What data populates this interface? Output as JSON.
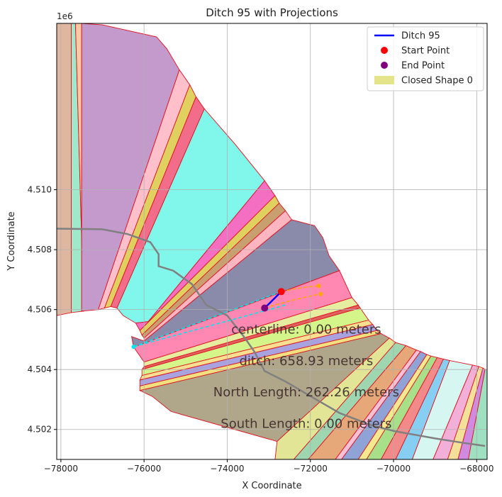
{
  "chart_data": {
    "type": "area",
    "title": "Ditch 95 with Projections",
    "xlabel": "X Coordinate",
    "ylabel": "Y Coordinate",
    "y_offset_label": "1e6",
    "xlim": [
      -78100,
      -67750
    ],
    "ylim": [
      4501000,
      4515550
    ],
    "x_ticks": [
      -78000,
      -76000,
      -74000,
      -72000,
      -70000,
      -68000
    ],
    "x_tick_labels": [
      "−78000",
      "−76000",
      "−74000",
      "−72000",
      "−70000",
      "−68000"
    ],
    "y_ticks": [
      4502000,
      4504000,
      4506000,
      4508000,
      4510000
    ],
    "y_tick_labels": [
      "4.502",
      "4.504",
      "4.506",
      "4.508",
      "4.510"
    ],
    "grid": true,
    "legend_position": "top-right",
    "legend": [
      {
        "label": "Ditch 95",
        "kind": "line",
        "color": "#0000ff"
      },
      {
        "label": "Start Point",
        "kind": "marker",
        "color": "#ff0000"
      },
      {
        "label": "End Point",
        "kind": "marker",
        "color": "#800080"
      },
      {
        "label": "Closed Shape 0",
        "kind": "patch",
        "color": "#e4e48a"
      }
    ],
    "ditch": {
      "name": "Ditch 95",
      "color": "#0000ff",
      "start": [
        -72700,
        4506600
      ],
      "end": [
        -73100,
        4506050
      ]
    },
    "start_point": {
      "x": -72700,
      "y": 4506600,
      "color": "#ff0000"
    },
    "end_point": {
      "x": -73100,
      "y": 4506050,
      "color": "#800080"
    },
    "projections": {
      "cyan": {
        "color": "#00e5ee",
        "points": [
          [
            -76250,
            4504760
          ],
          [
            -72700,
            4506600
          ],
          [
            -72600,
            4506150
          ],
          [
            -76250,
            4504760
          ]
        ]
      },
      "orange": {
        "color": "#ffa500",
        "points": [
          [
            -72700,
            4506600
          ],
          [
            -71800,
            4506790
          ],
          [
            -73100,
            4506050
          ],
          [
            -71750,
            4506520
          ]
        ]
      }
    },
    "gray_path": {
      "color": "#808080",
      "points": [
        [
          -78100,
          4508700
        ],
        [
          -77000,
          4508680
        ],
        [
          -76400,
          4508520
        ],
        [
          -75850,
          4508250
        ],
        [
          -75650,
          4507850
        ],
        [
          -75650,
          4507450
        ],
        [
          -75300,
          4507300
        ],
        [
          -74850,
          4506850
        ],
        [
          -74500,
          4506150
        ],
        [
          -74000,
          4505800
        ],
        [
          -73600,
          4505100
        ],
        [
          -73350,
          4504600
        ],
        [
          -73100,
          4503950
        ],
        [
          -72600,
          4503600
        ],
        [
          -71800,
          4502950
        ],
        [
          -71300,
          4502550
        ],
        [
          -70550,
          4502150
        ],
        [
          -70000,
          4501950
        ],
        [
          -69000,
          4501700
        ],
        [
          -68300,
          4501550
        ],
        [
          -67800,
          4501450
        ]
      ]
    },
    "patches": [
      {
        "color": "#dfb7a1",
        "points": [
          [
            -78100,
            4515550
          ],
          [
            -77750,
            4515550
          ],
          [
            -77750,
            4505900
          ],
          [
            -78100,
            4505800
          ]
        ]
      },
      {
        "color": "#9ee8cc",
        "points": [
          [
            -77750,
            4515550
          ],
          [
            -77650,
            4515550
          ],
          [
            -77450,
            4505950
          ],
          [
            -77750,
            4505900
          ]
        ]
      },
      {
        "color": "#f8c9a2",
        "points": [
          [
            -77650,
            4515550
          ],
          [
            -77500,
            4515550
          ],
          [
            -77500,
            4505950
          ],
          [
            -77450,
            4505950
          ]
        ]
      },
      {
        "color": "#c49acc",
        "points": [
          [
            -77500,
            4515550
          ],
          [
            -77000,
            4515500
          ],
          [
            -75700,
            4515100
          ],
          [
            -75450,
            4514700
          ],
          [
            -75150,
            4514000
          ],
          [
            -77100,
            4506000
          ],
          [
            -77500,
            4505950
          ]
        ]
      },
      {
        "color": "#ffc0cb",
        "points": [
          [
            -75150,
            4514000
          ],
          [
            -74900,
            4513500
          ],
          [
            -76950,
            4506050
          ],
          [
            -77100,
            4506000
          ]
        ]
      },
      {
        "color": "#e0d060",
        "points": [
          [
            -74900,
            4513500
          ],
          [
            -74750,
            4513100
          ],
          [
            -76800,
            4506100
          ],
          [
            -76950,
            4506050
          ]
        ]
      },
      {
        "color": "#f26d8a",
        "points": [
          [
            -74750,
            4513100
          ],
          [
            -74550,
            4512700
          ],
          [
            -76650,
            4506050
          ],
          [
            -76800,
            4506100
          ]
        ]
      },
      {
        "color": "#80f7ea",
        "points": [
          [
            -74550,
            4512700
          ],
          [
            -73800,
            4511500
          ],
          [
            -73100,
            4510300
          ],
          [
            -75900,
            4505600
          ],
          [
            -76200,
            4505550
          ],
          [
            -76500,
            4505800
          ],
          [
            -76650,
            4506050
          ]
        ]
      },
      {
        "color": "#f46fc1",
        "points": [
          [
            -73100,
            4510300
          ],
          [
            -72850,
            4509800
          ],
          [
            -76100,
            4505300
          ],
          [
            -76200,
            4505550
          ],
          [
            -75900,
            4505600
          ]
        ]
      },
      {
        "color": "#e0d060",
        "points": [
          [
            -72850,
            4509800
          ],
          [
            -72750,
            4509550
          ],
          [
            -76050,
            4505150
          ],
          [
            -76100,
            4505300
          ]
        ]
      },
      {
        "color": "#c8a070",
        "points": [
          [
            -72750,
            4509550
          ],
          [
            -72600,
            4509300
          ],
          [
            -76000,
            4505050
          ],
          [
            -76050,
            4505150
          ]
        ]
      },
      {
        "color": "#ffb6c1",
        "points": [
          [
            -72600,
            4509300
          ],
          [
            -72450,
            4509000
          ],
          [
            -76000,
            4504950
          ],
          [
            -76000,
            4505050
          ]
        ]
      },
      {
        "color": "#8a8aab",
        "points": [
          [
            -72450,
            4509000
          ],
          [
            -71900,
            4508800
          ],
          [
            -71700,
            4508400
          ],
          [
            -71550,
            4507800
          ],
          [
            -71300,
            4507300
          ],
          [
            -76250,
            4504750
          ],
          [
            -76300,
            4505100
          ],
          [
            -76000,
            4504950
          ]
        ]
      },
      {
        "color": "#ff88b3",
        "points": [
          [
            -71300,
            4507300
          ],
          [
            -71000,
            4506400
          ],
          [
            -76000,
            4504250
          ],
          [
            -76250,
            4504750
          ]
        ]
      },
      {
        "color": "#e6eda0",
        "points": [
          [
            -71000,
            4506400
          ],
          [
            -70850,
            4506150
          ],
          [
            -76000,
            4504100
          ],
          [
            -76000,
            4504250
          ]
        ]
      },
      {
        "color": "#e06060",
        "points": [
          [
            -70850,
            4506150
          ],
          [
            -70800,
            4506050
          ],
          [
            -76050,
            4504000
          ],
          [
            -76000,
            4504100
          ]
        ]
      },
      {
        "color": "#d4f589",
        "points": [
          [
            -70800,
            4506050
          ],
          [
            -70600,
            4505650
          ],
          [
            -76050,
            4503800
          ],
          [
            -76050,
            4504000
          ]
        ]
      },
      {
        "color": "#f9e090",
        "points": [
          [
            -70600,
            4505650
          ],
          [
            -70500,
            4505500
          ],
          [
            -76100,
            4503650
          ],
          [
            -76050,
            4503800
          ]
        ]
      },
      {
        "color": "#a8a2de",
        "points": [
          [
            -70500,
            4505500
          ],
          [
            -70400,
            4505300
          ],
          [
            -76100,
            4503450
          ],
          [
            -76100,
            4503650
          ]
        ]
      },
      {
        "color": "#f0e080",
        "points": [
          [
            -70400,
            4505300
          ],
          [
            -70300,
            4505200
          ],
          [
            -76100,
            4503300
          ],
          [
            -76100,
            4503450
          ]
        ]
      },
      {
        "color": "#b0a68a",
        "points": [
          [
            -70300,
            4505200
          ],
          [
            -70100,
            4505050
          ],
          [
            -72800,
            4501600
          ],
          [
            -75350,
            4502600
          ],
          [
            -75800,
            4503100
          ],
          [
            -76100,
            4503300
          ]
        ]
      },
      {
        "color": "#e2e595",
        "points": [
          [
            -70100,
            4505050
          ],
          [
            -69950,
            4504900
          ],
          [
            -72400,
            4501000
          ],
          [
            -72850,
            4501000
          ],
          [
            -72800,
            4501600
          ]
        ]
      },
      {
        "color": "#9ed6b0",
        "points": [
          [
            -69950,
            4504900
          ],
          [
            -69700,
            4504800
          ],
          [
            -72050,
            4501000
          ],
          [
            -72400,
            4501000
          ]
        ]
      },
      {
        "color": "#e6a878",
        "points": [
          [
            -69700,
            4504800
          ],
          [
            -69450,
            4504650
          ],
          [
            -71400,
            4501000
          ],
          [
            -72050,
            4501000
          ]
        ]
      },
      {
        "color": "#f7c0d5",
        "points": [
          [
            -69450,
            4504650
          ],
          [
            -69350,
            4504600
          ],
          [
            -71250,
            4501000
          ],
          [
            -71400,
            4501000
          ]
        ]
      },
      {
        "color": "#8fa3d6",
        "points": [
          [
            -69350,
            4504600
          ],
          [
            -69200,
            4504500
          ],
          [
            -70850,
            4501000
          ],
          [
            -71250,
            4501000
          ]
        ]
      },
      {
        "color": "#f6e88e",
        "points": [
          [
            -69200,
            4504500
          ],
          [
            -69100,
            4504450
          ],
          [
            -70650,
            4501000
          ],
          [
            -70850,
            4501000
          ]
        ]
      },
      {
        "color": "#a8e089",
        "points": [
          [
            -69100,
            4504450
          ],
          [
            -68950,
            4504400
          ],
          [
            -70300,
            4501000
          ],
          [
            -70650,
            4501000
          ]
        ]
      },
      {
        "color": "#f28a8a",
        "points": [
          [
            -68950,
            4504400
          ],
          [
            -68800,
            4504350
          ],
          [
            -69950,
            4501000
          ],
          [
            -70300,
            4501000
          ]
        ]
      },
      {
        "color": "#86cff2",
        "points": [
          [
            -68800,
            4504350
          ],
          [
            -68650,
            4504300
          ],
          [
            -69550,
            4501000
          ],
          [
            -69950,
            4501000
          ]
        ]
      },
      {
        "color": "#d6f6f2",
        "points": [
          [
            -68650,
            4504300
          ],
          [
            -68100,
            4504150
          ],
          [
            -69050,
            4501000
          ],
          [
            -69550,
            4501000
          ]
        ]
      },
      {
        "color": "#f2b0d8",
        "points": [
          [
            -68100,
            4504150
          ],
          [
            -67950,
            4504100
          ],
          [
            -68700,
            4501000
          ],
          [
            -69050,
            4501000
          ]
        ]
      },
      {
        "color": "#f3e19a",
        "points": [
          [
            -67950,
            4504100
          ],
          [
            -67850,
            4504050
          ],
          [
            -68450,
            4501000
          ],
          [
            -68700,
            4501000
          ]
        ]
      },
      {
        "color": "#d08adf",
        "points": [
          [
            -67850,
            4504050
          ],
          [
            -67800,
            4504000
          ],
          [
            -68200,
            4501000
          ],
          [
            -68450,
            4501000
          ]
        ]
      },
      {
        "color": "#9ee0c0",
        "points": [
          [
            -67800,
            4504000
          ],
          [
            -67750,
            4504000
          ],
          [
            -67750,
            4501000
          ],
          [
            -68200,
            4501000
          ]
        ]
      }
    ],
    "annotations": [
      {
        "text": "centerline: 0.00 meters",
        "x": -72100,
        "y": 4505200
      },
      {
        "text": "ditch: 658.93 meters",
        "x": -72100,
        "y": 4504150
      },
      {
        "text": "North Length: 262.26 meters",
        "x": -72100,
        "y": 4503100
      },
      {
        "text": "South Length: 0.00 meters",
        "x": -72100,
        "y": 4502050
      }
    ]
  }
}
